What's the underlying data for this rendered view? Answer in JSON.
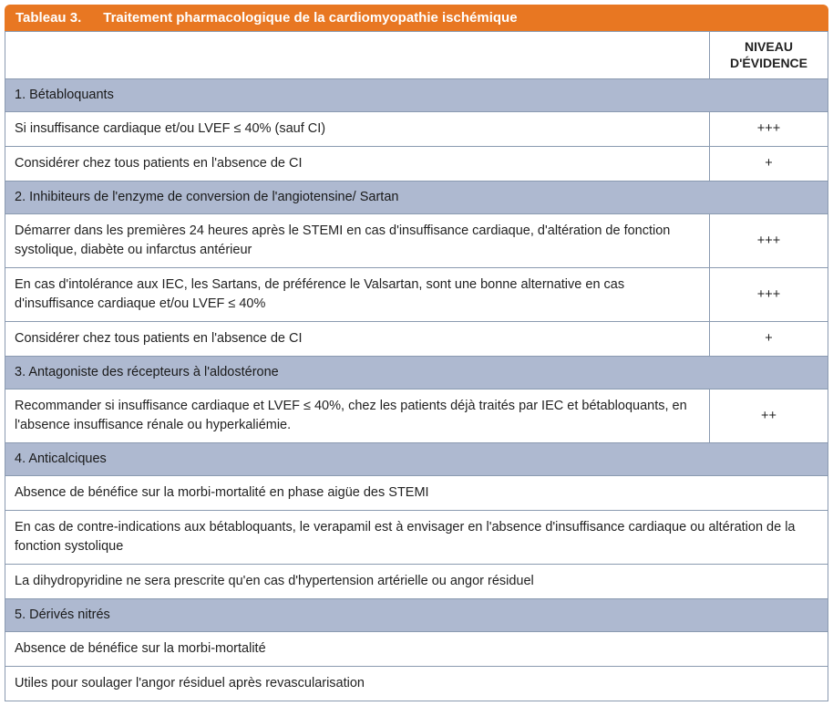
{
  "colors": {
    "header_bg": "#e87722",
    "header_text": "#ffffff",
    "section_bg": "#aeb9d0",
    "border": "#8a9ab0",
    "row_bg": "#ffffff",
    "text": "#222222"
  },
  "table": {
    "tab_label": "Tableau 3.",
    "title": "Traitement pharmacologique de la cardiomyopathie ischémique",
    "columns": {
      "main": "",
      "evidence": "NIVEAU D'ÉVIDENCE"
    },
    "sections": [
      {
        "heading": "1. Bétabloquants",
        "rows": [
          {
            "text": "Si insuffisance cardiaque et/ou LVEF ≤ 40% (sauf CI)",
            "evidence": "+++"
          },
          {
            "text": "Considérer chez tous patients en l'absence de CI",
            "evidence": "+"
          }
        ]
      },
      {
        "heading": "2. Inhibiteurs de l'enzyme de conversion de l'angiotensine/ Sartan",
        "rows": [
          {
            "text": "Démarrer dans les premières 24 heures après le STEMI en cas d'insuffisance cardiaque, d'altération de fonction systolique, diabète ou infarctus antérieur",
            "evidence": "+++"
          },
          {
            "text": "En cas d'intolérance aux IEC, les Sartans, de préférence le Valsartan, sont une bonne alternative en cas d'insuffisance cardiaque et/ou LVEF ≤ 40%",
            "evidence": "+++"
          },
          {
            "text": "Considérer chez tous patients en l'absence de CI",
            "evidence": "+"
          }
        ]
      },
      {
        "heading": "3. Antagoniste des récepteurs à l'aldostérone",
        "rows": [
          {
            "text": "Recommander si insuffisance cardiaque et LVEF  ≤ 40%, chez les patients déjà traités par IEC et bétabloquants, en l'absence insuffisance rénale ou hyperkaliémie.",
            "evidence": "++"
          }
        ]
      },
      {
        "heading": "4. Anticalciques",
        "rows": [
          {
            "text": "Absence de bénéfice sur la morbi-mortalité en phase aigüe des STEMI",
            "evidence": null
          },
          {
            "text": "En cas de contre-indications aux bétabloquants, le verapamil est à envisager en l'absence d'insuffisance cardiaque ou altération de la fonction systolique",
            "evidence": null
          },
          {
            "text": "La dihydropyridine ne sera prescrite qu'en cas d'hypertension artérielle ou angor résiduel",
            "evidence": null
          }
        ]
      },
      {
        "heading": "5. Dérivés nitrés",
        "rows": [
          {
            "text": "Absence de bénéfice sur la morbi-mortalité",
            "evidence": null
          },
          {
            "text": "Utiles pour soulager l'angor  résiduel après revascularisation",
            "evidence": null
          }
        ]
      }
    ]
  }
}
